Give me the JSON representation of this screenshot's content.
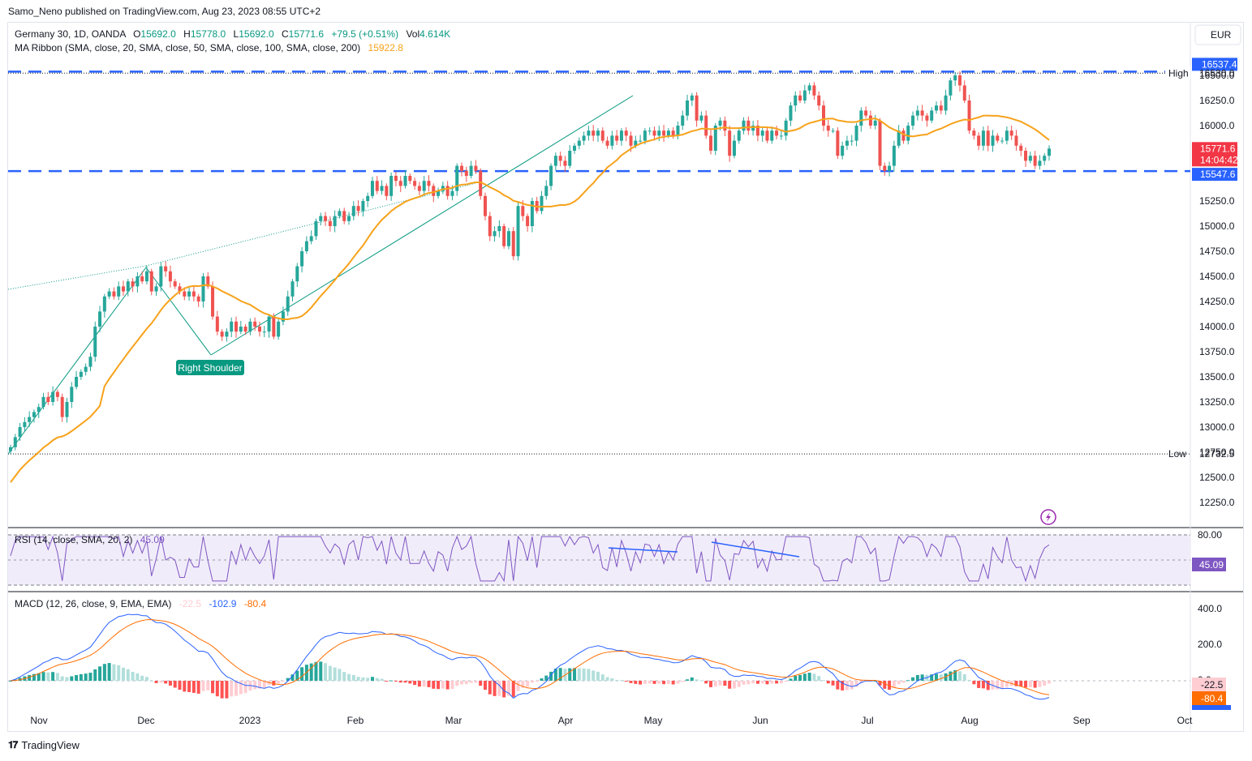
{
  "header": {
    "published": "Samo_Neno published on TradingView.com, Aug 23, 2023 08:55 UTC+2"
  },
  "symbol_line": {
    "name": "Germany 30, 1D, OANDA",
    "o_label": "O",
    "o": "15692.0",
    "h_label": "H",
    "h": "15778.0",
    "l_label": "L",
    "l": "15692.0",
    "c_label": "C",
    "c": "15771.6",
    "chg": "+79.5 (+0.51%)",
    "vol_label": "Vol",
    "vol": "4.614K"
  },
  "ma_line": {
    "label": "MA Ribbon (SMA, close, 20, SMA, close, 50, SMA, close, 100, SMA, close, 200)",
    "value": "15922.8"
  },
  "currency": "EUR",
  "price_axis": {
    "ticks": [
      "16500.0",
      "16250.0",
      "16000.0",
      "15750.0",
      "15500.0",
      "15250.0",
      "15000.0",
      "14750.0",
      "14500.0",
      "14250.0",
      "14000.0",
      "13750.0",
      "13500.0",
      "13250.0",
      "13000.0",
      "12750.0",
      "12500.0",
      "12250.0"
    ],
    "high_label": "High",
    "high_value": "16530.0",
    "low_label": "Low",
    "low_value": "12732.5",
    "resist_value": "16537.4",
    "support_value": "15547.6",
    "last_price": "15771.6",
    "countdown": "14:04:42"
  },
  "annotation": "Right Shoulder",
  "rsi": {
    "label": "RSI (14, close, SMA, 20, 2)",
    "value": "45.09",
    "ticks": [
      "80.00"
    ]
  },
  "macd": {
    "label": "MACD (12, 26, close, 9, EMA, EMA)",
    "hist": "-22.5",
    "macd_val": "-102.9",
    "signal_val": "-80.4",
    "ticks": [
      "400.0",
      "200.0",
      "0.0"
    ]
  },
  "time_axis": [
    "Nov",
    "Dec",
    "2023",
    "Feb",
    "Mar",
    "Apr",
    "May",
    "Jun",
    "Jul",
    "Aug",
    "Sep",
    "Oct"
  ],
  "colors": {
    "up": "#26a69a",
    "down": "#ef5350",
    "ma": "#f7a21b",
    "level": "#2962ff",
    "trend": "#089981",
    "rsi": "#7e57c2",
    "rsi_bg": "#f1ecfa",
    "macd": "#2962ff",
    "signal": "#ff6d00",
    "hist_up_strong": "#26a69a",
    "hist_up_weak": "#b2dfdb",
    "hist_dn_strong": "#ff5252",
    "hist_dn_weak": "#ffcdd2"
  },
  "footer": {
    "brand": "TradingView"
  },
  "chart_data": {
    "type": "candlestick",
    "ylim": [
      12100,
      16700
    ],
    "resistance": 16537.4,
    "support": 15547.6,
    "high": 16530.0,
    "low": 12732.5,
    "last_price": 15771.6,
    "ma_value": 15922.8,
    "closes": [
      12800,
      12900,
      13000,
      13050,
      13100,
      13150,
      13200,
      13300,
      13250,
      13350,
      13300,
      13100,
      13250,
      13400,
      13500,
      13550,
      13600,
      13700,
      14000,
      14150,
      14300,
      14350,
      14300,
      14400,
      14350,
      14450,
      14400,
      14500,
      14450,
      14550,
      14350,
      14400,
      14600,
      14550,
      14450,
      14400,
      14350,
      14300,
      14350,
      14300,
      14250,
      14500,
      14400,
      14100,
      13950,
      13900,
      13950,
      14050,
      13950,
      14000,
      13950,
      14050,
      14000,
      13950,
      13950,
      14100,
      13900,
      14050,
      14150,
      14300,
      14450,
      14600,
      14750,
      14850,
      14900,
      15050,
      15100,
      15050,
      15000,
      15100,
      15150,
      15050,
      15100,
      15200,
      15150,
      15250,
      15300,
      15450,
      15350,
      15400,
      15300,
      15500,
      15450,
      15400,
      15500,
      15450,
      15400,
      15350,
      15450,
      15400,
      15300,
      15350,
      15400,
      15300,
      15350,
      15600,
      15550,
      15500,
      15600,
      15550,
      15300,
      15100,
      14900,
      14950,
      15000,
      14800,
      14950,
      14700,
      15200,
      15100,
      15000,
      15250,
      15150,
      15300,
      15400,
      15600,
      15700,
      15650,
      15600,
      15750,
      15800,
      15850,
      15900,
      15950,
      15900,
      15950,
      15850,
      15800,
      15900,
      15850,
      15950,
      15900,
      15800,
      15850,
      15850,
      15950,
      15950,
      15900,
      15950,
      15900,
      15950,
      15900,
      16000,
      16100,
      16250,
      16300,
      16050,
      16100,
      15900,
      15750,
      16000,
      16050,
      15950,
      15700,
      15850,
      15950,
      16050,
      15950,
      16000,
      15900,
      15950,
      15850,
      15950,
      15900,
      15900,
      16050,
      16200,
      16300,
      16250,
      16350,
      16400,
      16300,
      16200,
      16000,
      15950,
      15950,
      15700,
      15800,
      15850,
      15850,
      16000,
      16150,
      16100,
      16000,
      16050,
      15600,
      15550,
      15600,
      15800,
      15950,
      15850,
      16000,
      16100,
      16150,
      16100,
      16050,
      16150,
      16200,
      16150,
      16300,
      16450,
      16500,
      16400,
      16250,
      15950,
      15900,
      15800,
      15950,
      15800,
      15900,
      15850,
      15850,
      15950,
      15900,
      15800,
      15750,
      15650,
      15700,
      15600,
      15650,
      15700,
      15771.6
    ],
    "rsi_value": 45.09,
    "rsi_ticks": [
      80
    ],
    "macd_ticks": [
      400,
      200,
      0
    ],
    "macd_hist": -22.5,
    "macd_line": -102.9,
    "macd_signal": -80.4
  }
}
